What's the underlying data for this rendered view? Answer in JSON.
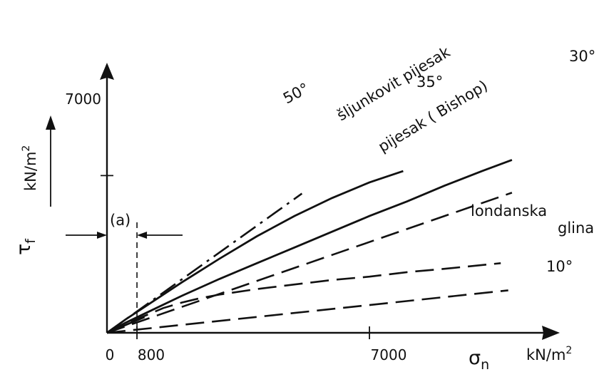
{
  "chart_data": {
    "type": "line",
    "title": "",
    "xlabel_symbol": "σ",
    "xlabel_sub": "n",
    "xlabel_unit": "kN/m",
    "xlabel_unit_sup": "2",
    "ylabel_symbol": "τ",
    "ylabel_sub": "f",
    "ylabel_unit": "kN/m",
    "ylabel_unit_sup": "2",
    "x_ticks": [
      "0",
      "800",
      "7000"
    ],
    "y_ticks": [
      "7000"
    ],
    "xlim": [
      0,
      11600
    ],
    "ylim": [
      0,
      11900
    ],
    "annotation": "(a)",
    "annotation_x": 800,
    "series": [
      {
        "name": "šljunkovit pijesak",
        "style": "solid",
        "x": [
          0,
          500,
          1000,
          2000,
          3000,
          4000,
          5000,
          6000,
          7000,
          7900
        ],
        "y": [
          0,
          600,
          1150,
          2250,
          3300,
          4300,
          5200,
          6000,
          6700,
          7200
        ]
      },
      {
        "name": "pijesak ( Bishop)",
        "style": "solid",
        "x": [
          0,
          500,
          1000,
          2000,
          3000,
          4000,
          5000,
          6000,
          7000,
          8000,
          9000,
          10000,
          10800
        ],
        "y": [
          0,
          450,
          850,
          1650,
          2400,
          3100,
          3800,
          4500,
          5200,
          5850,
          6550,
          7200,
          7700
        ]
      },
      {
        "name": "londanska glina",
        "style": "dashed",
        "x": [
          0,
          500,
          1000,
          1500,
          2000,
          2500,
          3000,
          4000,
          5000,
          6000,
          7000,
          8000,
          9000,
          10500
        ],
        "y": [
          0,
          400,
          750,
          1100,
          1350,
          1550,
          1700,
          1950,
          2150,
          2350,
          2500,
          2700,
          2850,
          3100
        ]
      },
      {
        "name": "50°",
        "style": "dash-dot",
        "phi": 50,
        "x": [
          0,
          5200
        ],
        "y": [
          0,
          6200
        ]
      },
      {
        "name": "35°",
        "style": "solid",
        "phi": 35,
        "x": [
          0,
          1000
        ],
        "y": [
          0,
          700
        ]
      },
      {
        "name": "30°",
        "style": "dashed",
        "phi": 30,
        "x": [
          0,
          10800
        ],
        "y": [
          0,
          6240
        ]
      },
      {
        "name": "10°",
        "style": "dashed",
        "phi": 10,
        "x": [
          0,
          10700
        ],
        "y": [
          0,
          1890
        ]
      }
    ]
  }
}
